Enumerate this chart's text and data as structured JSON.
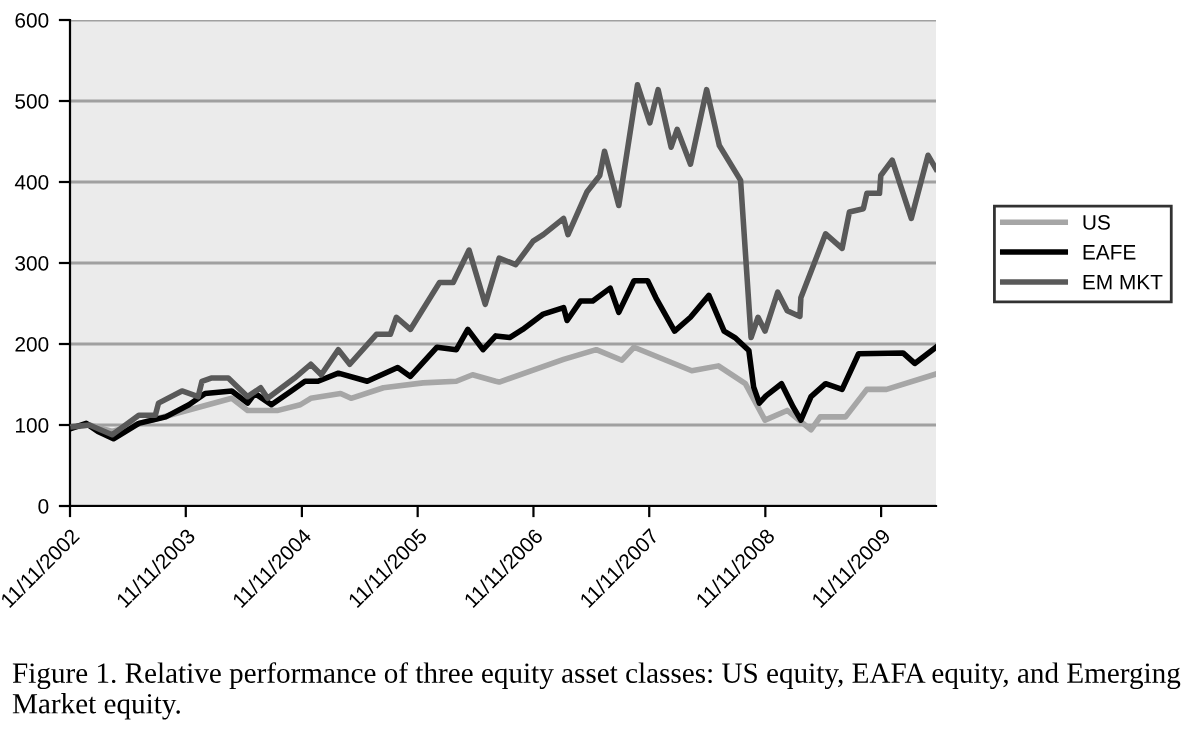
{
  "chart_data": {
    "type": "line",
    "xlim": [
      "2002-11-11",
      "2010-05-03"
    ],
    "ylim": [
      0,
      600
    ],
    "yticks": [
      0,
      100,
      200,
      300,
      400,
      500,
      600
    ],
    "xticks": [
      {
        "value": "2002-11-11",
        "label": "11/11/2002"
      },
      {
        "value": "2003-11-11",
        "label": "11/11/2003"
      },
      {
        "value": "2004-11-11",
        "label": "11/11/2004"
      },
      {
        "value": "2005-11-11",
        "label": "11/11/2005"
      },
      {
        "value": "2006-11-11",
        "label": "11/11/2006"
      },
      {
        "value": "2007-11-11",
        "label": "11/11/2007"
      },
      {
        "value": "2008-11-11",
        "label": "11/11/2008"
      },
      {
        "value": "2009-11-11",
        "label": "11/11/2009"
      }
    ],
    "grid": "y",
    "legend": "right",
    "marker": "none",
    "line_style": "solid",
    "series": [
      {
        "name": "US",
        "color": "#a6a6a6",
        "x": [
          "2002-11-17",
          "2003-01-11",
          "2003-03-24",
          "2003-07-07",
          "2003-11-06",
          "2004-04-04",
          "2004-05-24",
          "2004-08-28",
          "2004-11-06",
          "2004-12-09",
          "2005-03-13",
          "2005-04-15",
          "2005-07-26",
          "2005-11-28",
          "2006-03-13",
          "2006-05-03",
          "2006-07-15",
          "2006-07-26",
          "2007-02-14",
          "2007-05-28",
          "2007-08-17",
          "2007-09-24",
          "2008-03-24",
          "2008-06-16",
          "2008-09-09",
          "2008-11-10",
          "2009-01-19",
          "2009-04-04",
          "2009-05-03",
          "2009-07-22",
          "2009-09-27",
          "2009-11-28",
          "2010-05-03"
        ],
        "values": [
          97,
          100,
          92,
          104,
          117,
          133,
          118,
          118,
          125,
          133,
          139,
          133,
          146,
          152,
          154,
          162,
          154,
          153,
          181,
          193,
          180,
          196,
          167,
          173,
          151,
          106,
          118,
          94,
          110,
          110,
          144,
          144,
          163
        ]
      },
      {
        "name": "EAFE",
        "color": "#000000",
        "x": [
          "2002-11-17",
          "2003-01-01",
          "2003-02-07",
          "2003-03-28",
          "2003-06-16",
          "2003-09-09",
          "2003-11-21",
          "2004-01-11",
          "2004-04-04",
          "2004-05-24",
          "2004-06-16",
          "2004-08-07",
          "2004-10-12",
          "2004-11-21",
          "2005-01-01",
          "2005-03-06",
          "2005-06-05",
          "2005-09-09",
          "2005-10-19",
          "2006-01-11",
          "2006-03-13",
          "2006-04-18",
          "2006-06-05",
          "2006-07-15",
          "2006-08-28",
          "2006-10-08",
          "2006-12-12",
          "2007-02-14",
          "2007-02-25",
          "2007-04-08",
          "2007-05-17",
          "2007-07-11",
          "2007-08-07",
          "2007-09-24",
          "2007-11-06",
          "2007-12-02",
          "2008-01-30",
          "2008-03-20",
          "2008-05-17",
          "2008-07-04",
          "2008-08-07",
          "2008-09-20",
          "2008-10-05",
          "2008-10-23",
          "2008-11-13",
          "2009-01-01",
          "2009-02-07",
          "2009-03-03",
          "2009-04-04",
          "2009-05-20",
          "2009-07-11",
          "2009-09-01",
          "2010-01-19",
          "2010-02-25",
          "2010-05-03"
        ],
        "values": [
          96,
          102,
          92,
          83,
          102,
          110,
          125,
          139,
          142,
          127,
          139,
          125,
          143,
          154,
          154,
          164,
          154,
          171,
          160,
          196,
          193,
          218,
          193,
          210,
          208,
          218,
          237,
          245,
          229,
          253,
          253,
          269,
          239,
          278,
          278,
          257,
          216,
          233,
          260,
          216,
          208,
          192,
          147,
          127,
          136,
          151,
          122,
          106,
          135,
          151,
          144,
          188,
          189,
          176,
          196
        ]
      },
      {
        "name": "EM MKT",
        "color": "#595959",
        "x": [
          "2002-11-21",
          "2003-01-11",
          "2003-03-24",
          "2003-06-16",
          "2003-08-07",
          "2003-08-17",
          "2003-10-30",
          "2003-12-20",
          "2004-01-01",
          "2004-01-30",
          "2004-03-24",
          "2004-05-24",
          "2004-07-04",
          "2004-07-26",
          "2004-10-19",
          "2004-12-09",
          "2005-01-11",
          "2005-03-06",
          "2005-04-11",
          "2005-07-04",
          "2005-08-17",
          "2005-09-05",
          "2005-10-19",
          "2006-01-19",
          "2006-03-03",
          "2006-04-22",
          "2006-06-12",
          "2006-07-26",
          "2006-09-16",
          "2006-11-10",
          "2006-12-12",
          "2007-02-14",
          "2007-02-28",
          "2007-04-29",
          "2007-06-08",
          "2007-06-23",
          "2007-08-07",
          "2007-10-05",
          "2007-11-13",
          "2007-12-09",
          "2008-01-19",
          "2008-02-07",
          "2008-03-20",
          "2008-05-10",
          "2008-06-19",
          "2008-08-25",
          "2008-09-27",
          "2008-10-19",
          "2008-11-10",
          "2008-12-20",
          "2009-01-19",
          "2009-02-28",
          "2009-03-03",
          "2009-05-20",
          "2009-07-11",
          "2009-08-03",
          "2009-09-16",
          "2009-09-27",
          "2009-11-06",
          "2009-11-10",
          "2009-12-16",
          "2010-02-14",
          "2010-04-08",
          "2010-05-03"
        ],
        "values": [
          98,
          100,
          88,
          112,
          112,
          127,
          142,
          135,
          154,
          158,
          158,
          135,
          146,
          133,
          158,
          175,
          162,
          193,
          175,
          212,
          212,
          233,
          218,
          276,
          276,
          316,
          249,
          306,
          298,
          327,
          335,
          355,
          335,
          388,
          408,
          438,
          371,
          520,
          473,
          514,
          443,
          465,
          422,
          514,
          445,
          402,
          208,
          233,
          216,
          264,
          241,
          234,
          257,
          336,
          318,
          363,
          367,
          386,
          386,
          408,
          427,
          355,
          433,
          416
        ]
      }
    ],
    "annotations": [
      "Figure 1. Relative performance of three equity asset classes: US equity, EAFA equity, and Emerging Market equity."
    ]
  }
}
